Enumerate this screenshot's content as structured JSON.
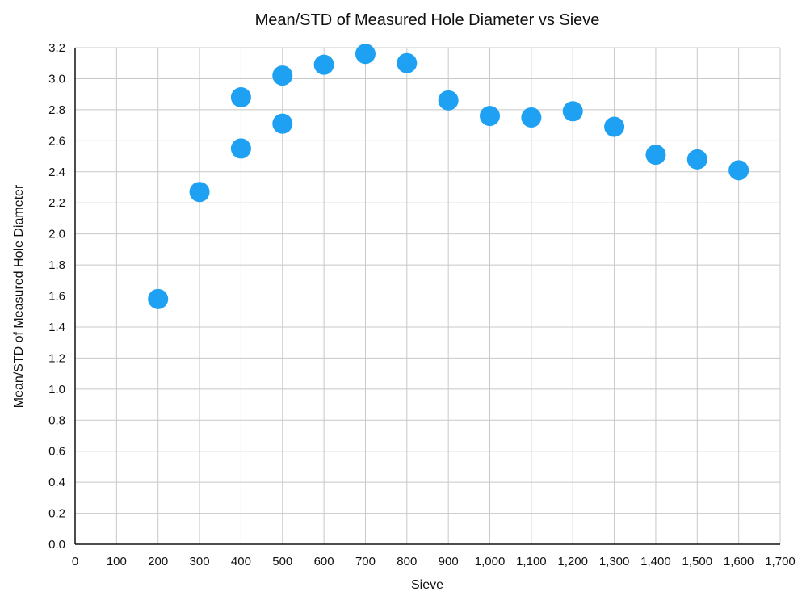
{
  "chart_data": {
    "type": "scatter",
    "title": "Mean/STD of Measured Hole Diameter vs Sieve",
    "xlabel": "Sieve",
    "ylabel": "Mean/STD of Measured Hole Diameter",
    "xlim": [
      0,
      1700
    ],
    "ylim": [
      0,
      3.2
    ],
    "x_ticks": [
      "0",
      "100",
      "200",
      "300",
      "400",
      "500",
      "600",
      "700",
      "800",
      "900",
      "1,000",
      "1,100",
      "1,200",
      "1,300",
      "1,400",
      "1,500",
      "1,600",
      "1,700"
    ],
    "y_ticks": [
      "0.0",
      "0.2",
      "0.4",
      "0.6",
      "0.8",
      "1.0",
      "1.2",
      "1.4",
      "1.6",
      "1.8",
      "2.0",
      "2.2",
      "2.4",
      "2.6",
      "2.8",
      "3.0",
      "3.2"
    ],
    "grid": true,
    "legend": "none",
    "marker_color": "#1ea1f2",
    "grid_color": "#c8c8c8",
    "axis_color": "#111111",
    "points": [
      {
        "x": 200,
        "y": 1.58
      },
      {
        "x": 300,
        "y": 2.27
      },
      {
        "x": 400,
        "y": 2.55
      },
      {
        "x": 400,
        "y": 2.88
      },
      {
        "x": 500,
        "y": 2.71
      },
      {
        "x": 500,
        "y": 3.02
      },
      {
        "x": 600,
        "y": 3.09
      },
      {
        "x": 700,
        "y": 3.16
      },
      {
        "x": 800,
        "y": 3.1
      },
      {
        "x": 900,
        "y": 2.86
      },
      {
        "x": 1000,
        "y": 2.76
      },
      {
        "x": 1100,
        "y": 2.75
      },
      {
        "x": 1200,
        "y": 2.79
      },
      {
        "x": 1300,
        "y": 2.69
      },
      {
        "x": 1400,
        "y": 2.51
      },
      {
        "x": 1500,
        "y": 2.48
      },
      {
        "x": 1600,
        "y": 2.41
      }
    ]
  }
}
